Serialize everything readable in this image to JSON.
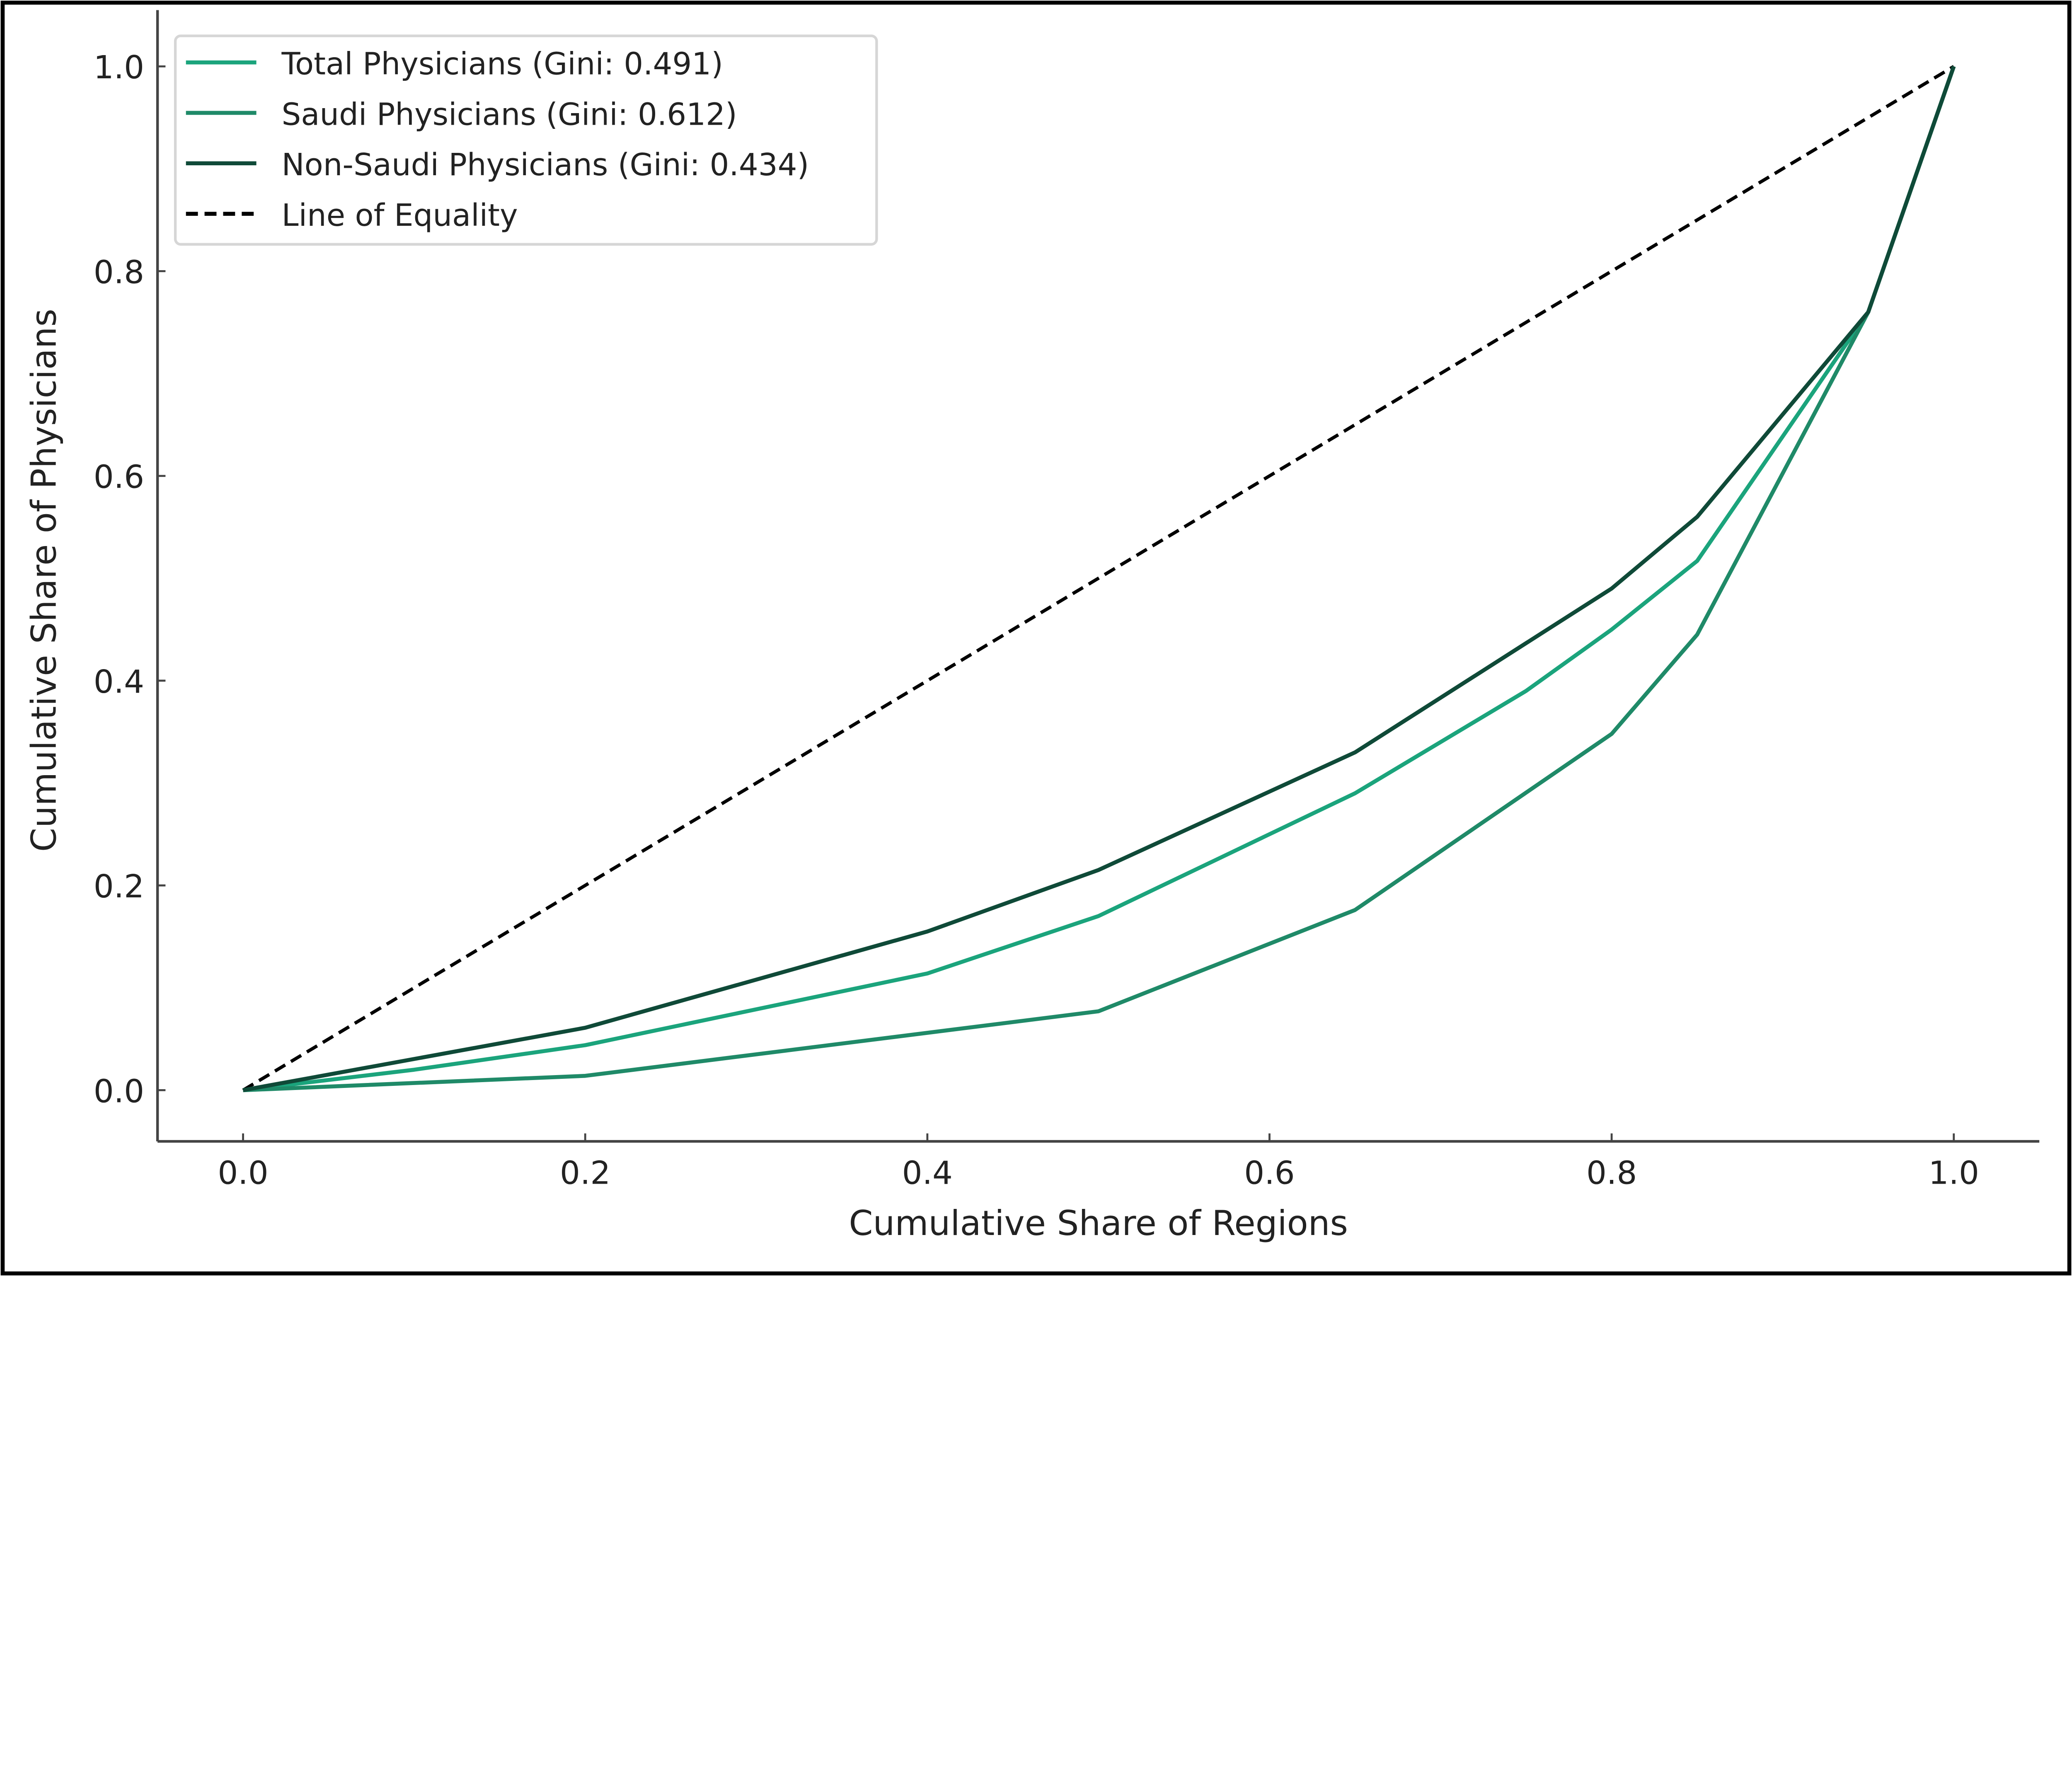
{
  "chart_data": {
    "type": "line",
    "title": "",
    "xlabel": "Cumulative Share of Regions",
    "ylabel": "Cumulative Share of Physicians",
    "xlim": [
      -0.05,
      1.05
    ],
    "ylim": [
      -0.05,
      1.055
    ],
    "xticks": [
      0.0,
      0.2,
      0.4,
      0.6,
      0.8,
      1.0
    ],
    "yticks": [
      0.0,
      0.2,
      0.4,
      0.6,
      0.8,
      1.0
    ],
    "xtick_labels": [
      "0.0",
      "0.2",
      "0.4",
      "0.6",
      "0.8",
      "1.0"
    ],
    "ytick_labels": [
      "0.0",
      "0.2",
      "0.4",
      "0.6",
      "0.8",
      "1.0"
    ],
    "grid": false,
    "legend_position": "top-left",
    "series": [
      {
        "name": "Total Physicians (Gini: 0.491)",
        "color": "#1ba47c",
        "style": "solid",
        "x": [
          0,
          0.1,
          0.2,
          0.4,
          0.5,
          0.65,
          0.75,
          0.8,
          0.85,
          0.95,
          1.0
        ],
        "y": [
          0,
          0.02,
          0.044,
          0.114,
          0.17,
          0.29,
          0.39,
          0.45,
          0.517,
          0.76,
          1.0
        ]
      },
      {
        "name": "Saudi Physicians (Gini: 0.612)",
        "color": "#1f8a68",
        "style": "solid",
        "x": [
          0,
          0.2,
          0.5,
          0.65,
          0.8,
          0.85,
          0.95,
          1.0
        ],
        "y": [
          0,
          0.014,
          0.077,
          0.176,
          0.348,
          0.445,
          0.76,
          1.0
        ]
      },
      {
        "name": "Non-Saudi Physicians (Gini: 0.434)",
        "color": "#0f4a38",
        "style": "solid",
        "x": [
          0,
          0.2,
          0.4,
          0.5,
          0.65,
          0.8,
          0.85,
          0.95,
          1.0
        ],
        "y": [
          0,
          0.061,
          0.155,
          0.215,
          0.33,
          0.49,
          0.56,
          0.76,
          1.0
        ]
      },
      {
        "name": "Line of Equality",
        "color": "#000000",
        "style": "dashed",
        "x": [
          0,
          1.0
        ],
        "y": [
          0,
          1.0
        ]
      }
    ]
  }
}
